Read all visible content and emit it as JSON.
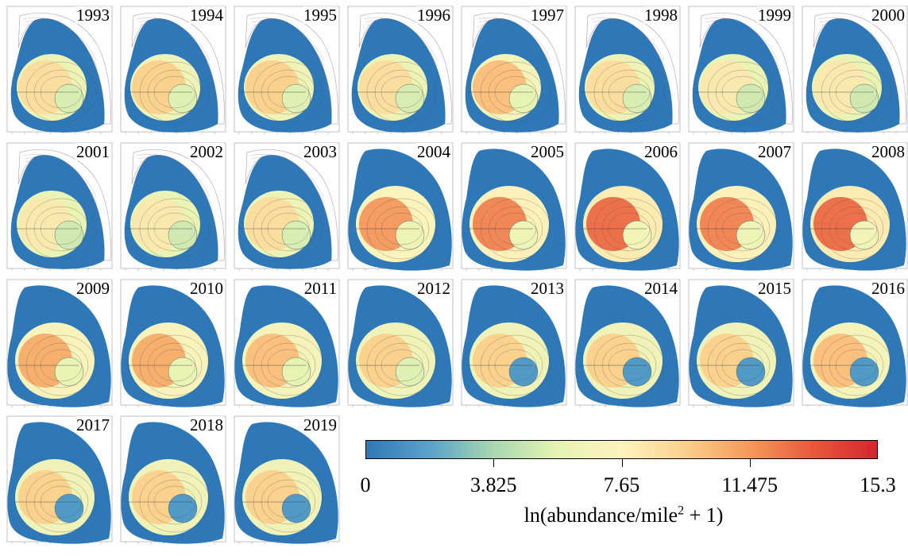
{
  "panels": [
    {
      "year": "1993",
      "i": 3
    },
    {
      "year": "1994",
      "i": 4
    },
    {
      "year": "1995",
      "i": 4
    },
    {
      "year": "1996",
      "i": 3
    },
    {
      "year": "1997",
      "i": 5
    },
    {
      "year": "1998",
      "i": 3
    },
    {
      "year": "1999",
      "i": 2
    },
    {
      "year": "2000",
      "i": 2
    },
    {
      "year": "2001",
      "i": 2
    },
    {
      "year": "2002",
      "i": 2
    },
    {
      "year": "2003",
      "i": 3
    },
    {
      "year": "2004",
      "i": 7
    },
    {
      "year": "2005",
      "i": 8
    },
    {
      "year": "2006",
      "i": 9
    },
    {
      "year": "2007",
      "i": 8
    },
    {
      "year": "2008",
      "i": 9
    },
    {
      "year": "2009",
      "i": 6
    },
    {
      "year": "2010",
      "i": 6
    },
    {
      "year": "2011",
      "i": 5
    },
    {
      "year": "2012",
      "i": 4
    },
    {
      "year": "2013",
      "i": 4
    },
    {
      "year": "2014",
      "i": 4
    },
    {
      "year": "2015",
      "i": 4
    },
    {
      "year": "2016",
      "i": 5
    },
    {
      "year": "2017",
      "i": 4
    },
    {
      "year": "2018",
      "i": 4
    },
    {
      "year": "2019",
      "i": 4
    }
  ],
  "colorbar": {
    "ticks": [
      "0",
      "3.825",
      "7.65",
      "11.475",
      "15.3"
    ],
    "label": "ln(abundance/mile",
    "label_sup": "2",
    "label_tail": " + 1)",
    "colors": [
      "#2f78b8",
      "#5aa3c9",
      "#a8d8b0",
      "#e6f3b2",
      "#fdf3bd",
      "#fbd08c",
      "#f59a5a",
      "#e8593a",
      "#d2262d"
    ]
  }
}
